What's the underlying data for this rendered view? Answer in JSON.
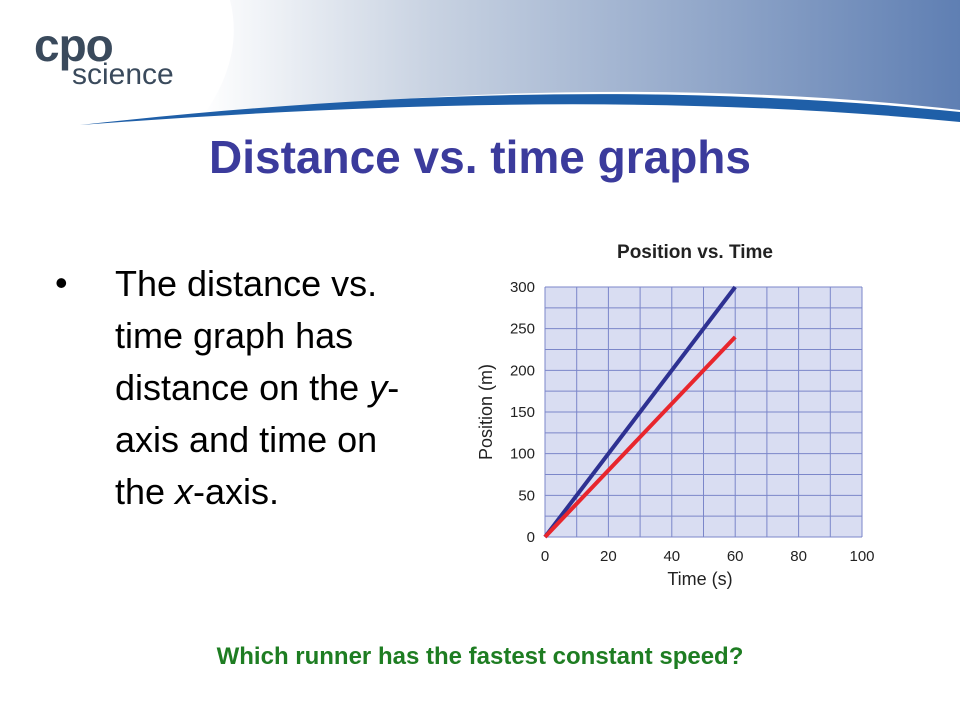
{
  "header": {
    "logo_top": "cpo",
    "logo_bottom": "science",
    "title": "Distance vs. time graphs"
  },
  "bullet": [
    "The distance vs. time graph has distance on the ",
    "y",
    "-axis and time on the ",
    "x",
    "-axis."
  ],
  "question": "Which runner has the fastest constant speed?",
  "chart_data": {
    "type": "line",
    "title": "Position vs. Time",
    "x_label": "Time (s)",
    "y_label": "Position (m)",
    "x": [
      0,
      60
    ],
    "series": [
      {
        "color": "#2e3192",
        "values": [
          0,
          300
        ]
      },
      {
        "color": "#e8262d",
        "values": [
          0,
          240
        ]
      }
    ],
    "xlim": [
      0,
      100
    ],
    "ylim": [
      0,
      300
    ],
    "xticks": [
      0,
      20,
      40,
      60,
      80,
      100
    ],
    "yticks": [
      0,
      50,
      100,
      150,
      200,
      250,
      300
    ],
    "xgrid": [
      0,
      10,
      20,
      30,
      40,
      50,
      60,
      70,
      80,
      90,
      100
    ],
    "ygrid": [
      0,
      25,
      50,
      75,
      100,
      125,
      150,
      175,
      200,
      225,
      250,
      275,
      300
    ],
    "grid": true,
    "plot_color": "#d9ddf2",
    "grid_color": "#7b86c9"
  }
}
